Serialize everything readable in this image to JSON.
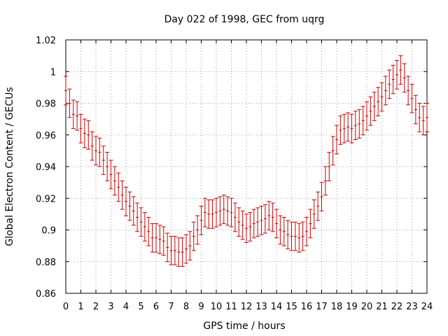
{
  "chart_data": {
    "type": "scatter",
    "title": "Day 022 of 1998, GEC from uqrg",
    "xlabel": "GPS time / hours",
    "ylabel": "Global Electron Content / GECUs",
    "xlim": [
      0,
      24
    ],
    "ylim": [
      0.86,
      1.02
    ],
    "xticks": [
      0,
      1,
      2,
      3,
      4,
      5,
      6,
      7,
      8,
      9,
      10,
      11,
      12,
      13,
      14,
      15,
      16,
      17,
      18,
      19,
      20,
      21,
      22,
      23,
      24
    ],
    "yticks": [
      0.86,
      0.88,
      0.9,
      0.92,
      0.94,
      0.96,
      0.98,
      1,
      1.02
    ],
    "ytick_labels": [
      "0.86",
      "0.88",
      "0.9",
      "0.92",
      "0.94",
      "0.96",
      "0.98",
      "1",
      "1.02"
    ],
    "grid": true,
    "series": [
      {
        "name": "GEC",
        "color": "#cc0000",
        "error": 0.009,
        "x": [
          0,
          0.25,
          0.5,
          0.75,
          1,
          1.25,
          1.5,
          1.75,
          2,
          2.25,
          2.5,
          2.75,
          3,
          3.25,
          3.5,
          3.75,
          4,
          4.25,
          4.5,
          4.75,
          5,
          5.25,
          5.5,
          5.75,
          6,
          6.25,
          6.5,
          6.75,
          7,
          7.25,
          7.5,
          7.75,
          8,
          8.25,
          8.5,
          8.75,
          9,
          9.25,
          9.5,
          9.75,
          10,
          10.25,
          10.5,
          10.75,
          11,
          11.25,
          11.5,
          11.75,
          12,
          12.25,
          12.5,
          12.75,
          13,
          13.25,
          13.5,
          13.75,
          14,
          14.25,
          14.5,
          14.75,
          15,
          15.25,
          15.5,
          15.75,
          16,
          16.25,
          16.5,
          16.75,
          17,
          17.25,
          17.5,
          17.75,
          18,
          18.25,
          18.5,
          18.75,
          19,
          19.25,
          19.5,
          19.75,
          20,
          20.25,
          20.5,
          20.75,
          21,
          21.25,
          21.5,
          21.75,
          22,
          22.25,
          22.5,
          22.75,
          23,
          23.25,
          23.5,
          23.75,
          24
        ],
        "values": [
          0.988,
          0.98,
          0.973,
          0.972,
          0.964,
          0.961,
          0.96,
          0.953,
          0.95,
          0.949,
          0.944,
          0.94,
          0.935,
          0.931,
          0.927,
          0.922,
          0.918,
          0.915,
          0.912,
          0.908,
          0.905,
          0.902,
          0.899,
          0.895,
          0.895,
          0.894,
          0.893,
          0.889,
          0.887,
          0.887,
          0.886,
          0.886,
          0.888,
          0.89,
          0.896,
          0.9,
          0.906,
          0.911,
          0.91,
          0.91,
          0.911,
          0.912,
          0.913,
          0.912,
          0.911,
          0.908,
          0.905,
          0.903,
          0.901,
          0.902,
          0.904,
          0.905,
          0.906,
          0.907,
          0.909,
          0.908,
          0.904,
          0.9,
          0.899,
          0.897,
          0.896,
          0.896,
          0.895,
          0.896,
          0.899,
          0.904,
          0.91,
          0.915,
          0.921,
          0.931,
          0.94,
          0.95,
          0.957,
          0.963,
          0.964,
          0.965,
          0.964,
          0.966,
          0.967,
          0.969,
          0.972,
          0.975,
          0.978,
          0.981,
          0.984,
          0.988,
          0.992,
          0.995,
          0.998,
          1.001,
          0.996,
          0.988,
          0.983,
          0.976,
          0.971,
          0.969,
          0.971
        ]
      }
    ]
  }
}
